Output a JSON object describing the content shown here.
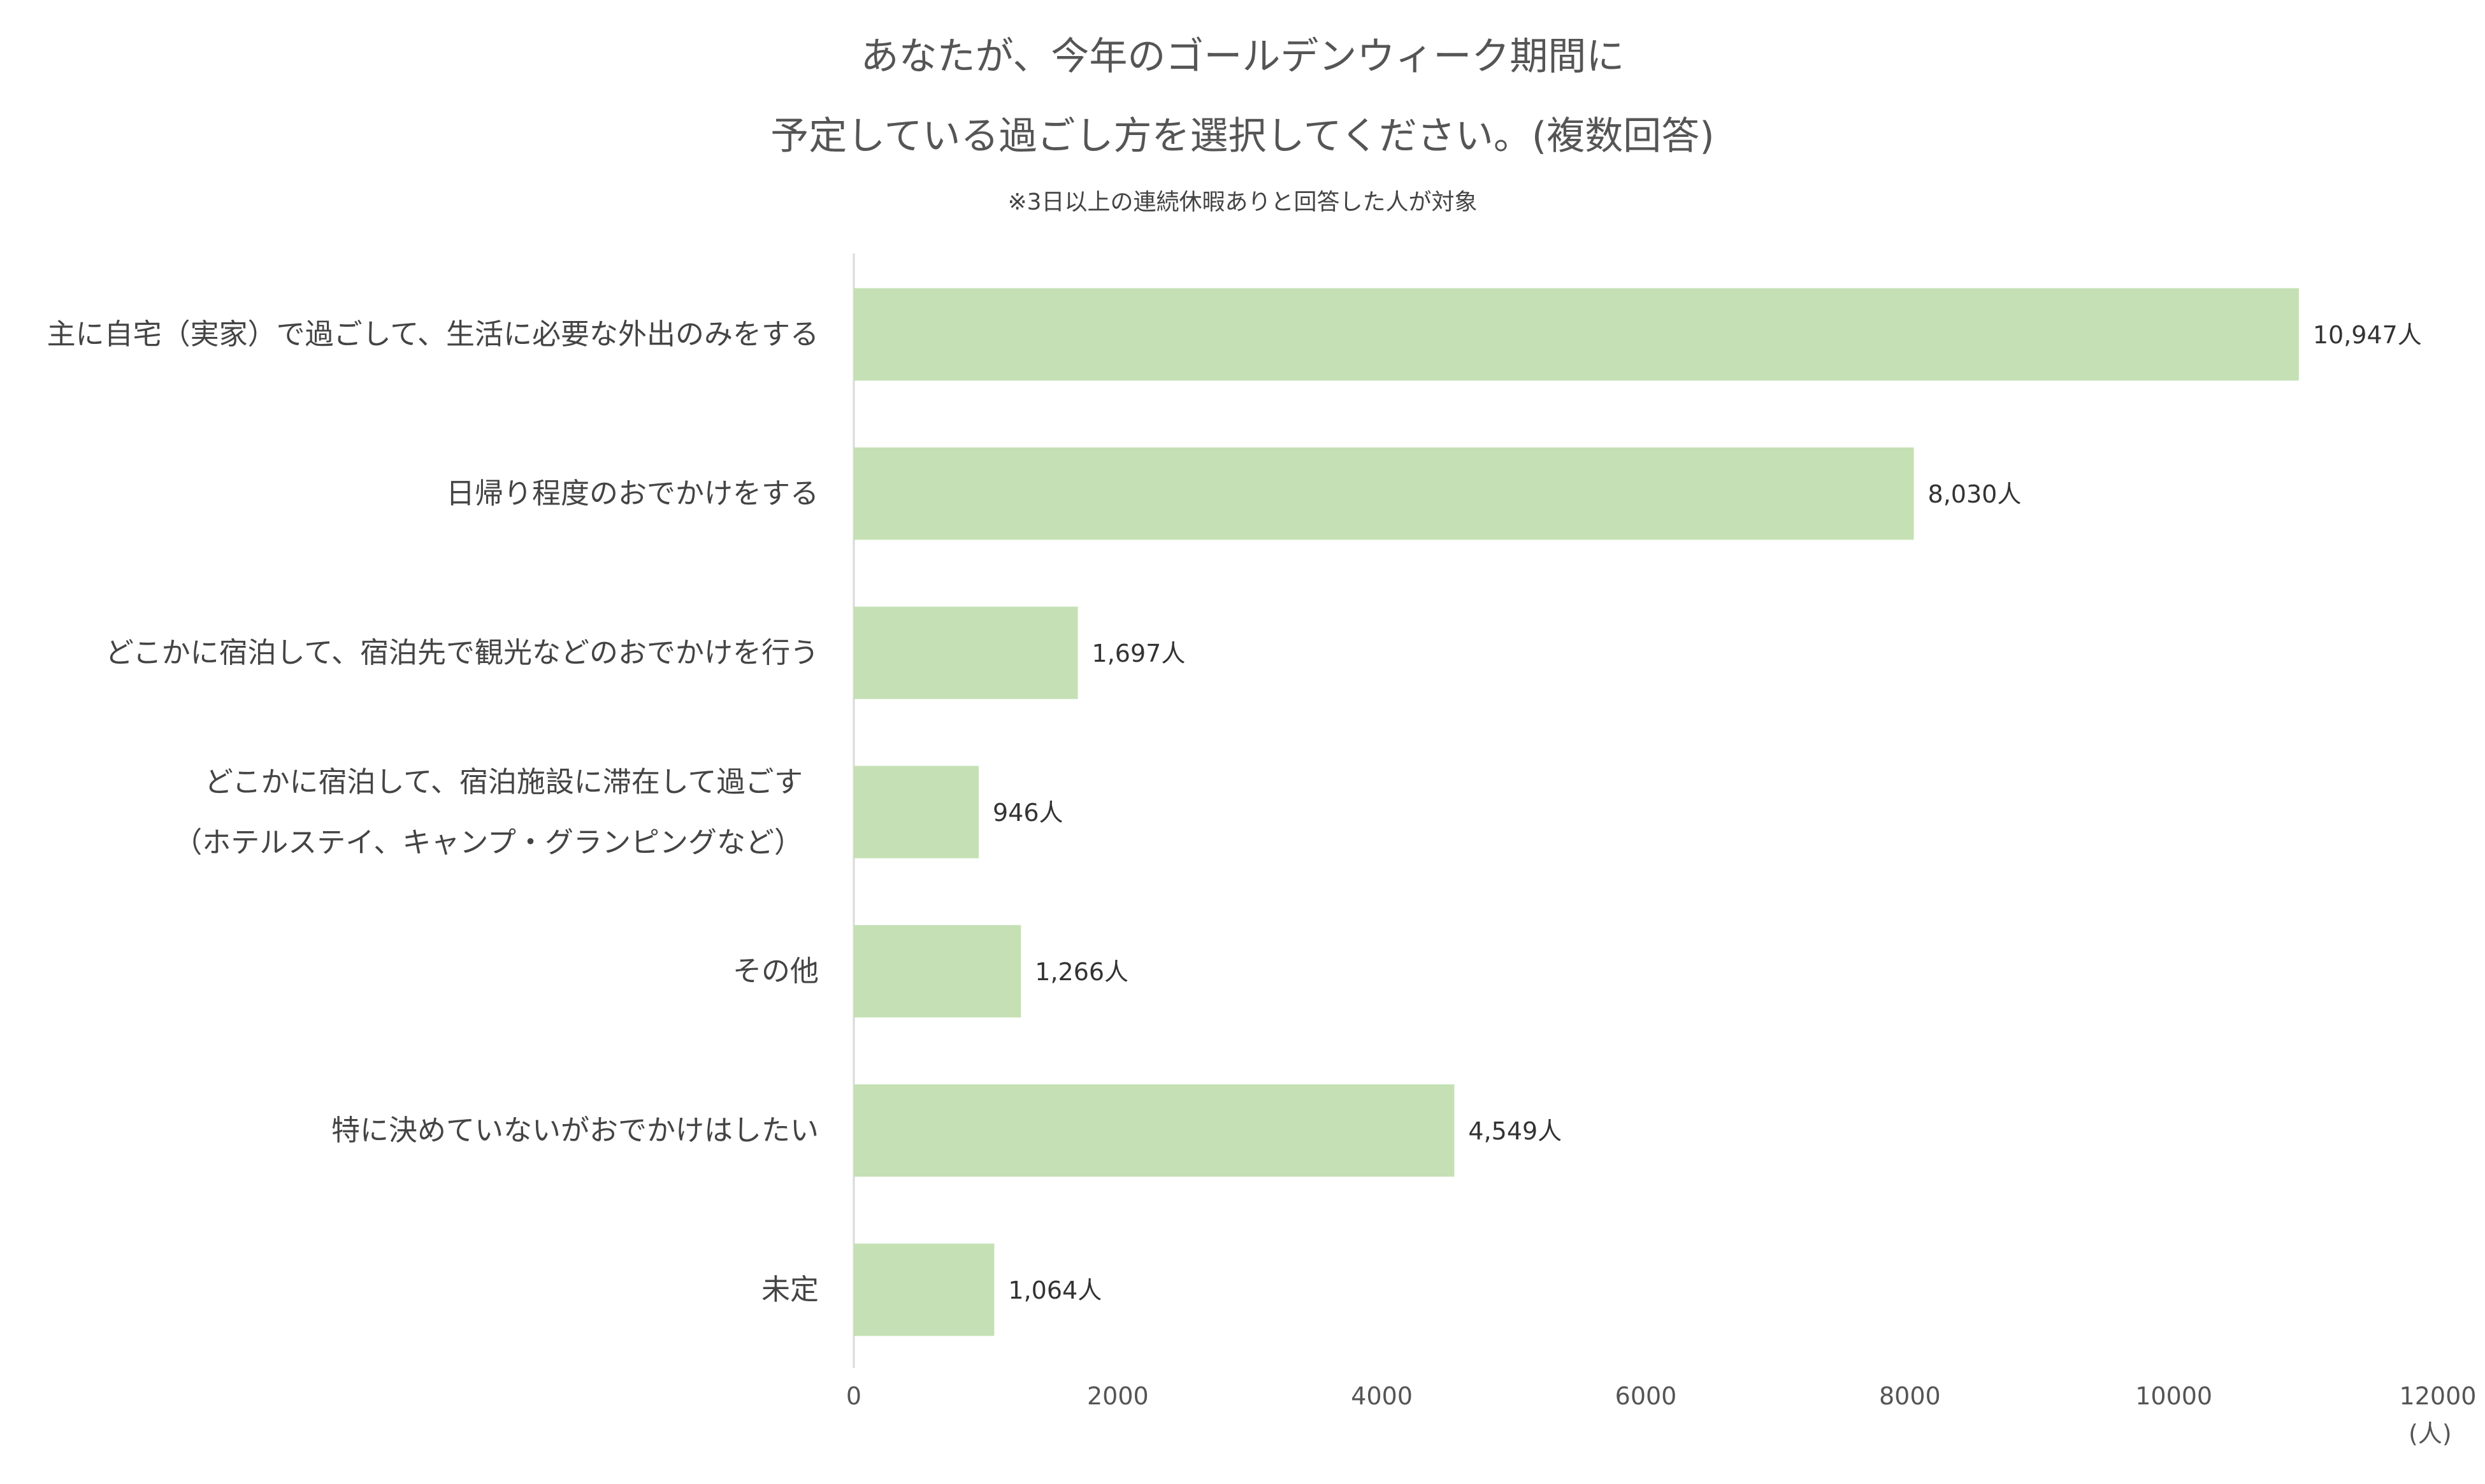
{
  "chart_data": {
    "type": "bar",
    "orientation": "horizontal",
    "title_lines": [
      "あなたが、今年のゴールデンウィーク期間に",
      "予定している過ごし方を選択してください。(複数回答)"
    ],
    "subtitle": "※3日以上の連続休暇ありと回答した人が対象",
    "categories": [
      [
        "主に自宅（実家）で過ごして、生活に必要な外出のみをする"
      ],
      [
        "日帰り程度のおでかけをする"
      ],
      [
        "どこかに宿泊して、宿泊先で観光などのおでかけを行う"
      ],
      [
        "どこかに宿泊して、宿泊施設に滞在して過ごす",
        "（ホテルステイ、キャンプ・グランピングなど）"
      ],
      [
        "その他"
      ],
      [
        "特に決めていないがおでかけはしたい"
      ],
      [
        "未定"
      ]
    ],
    "values": [
      10947,
      8030,
      1697,
      946,
      1266,
      4549,
      1064
    ],
    "data_labels": [
      "10,947人",
      "8,030人",
      "1,697人",
      "946人",
      "1,266人",
      "4,549人",
      "1,064人"
    ],
    "xlim": [
      0,
      12000
    ],
    "xticks": [
      "0",
      "2000",
      "4000",
      "6000",
      "8000",
      "10000",
      "12000"
    ],
    "xunit": "(人)",
    "bar_color": "#c5e0b4",
    "grid": false
  }
}
